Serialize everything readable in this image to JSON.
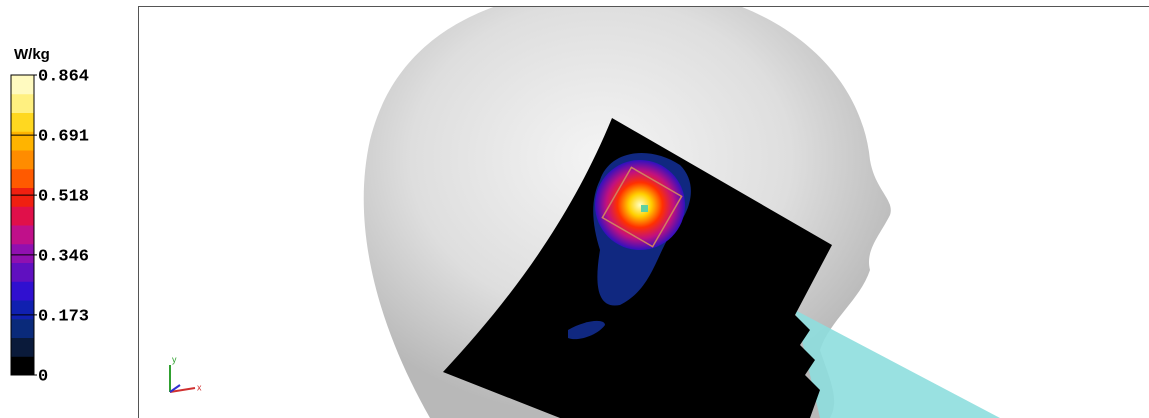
{
  "legend": {
    "unit": "W/kg",
    "lim": [
      0,
      0.864
    ],
    "ticks": [
      0,
      0.173,
      0.346,
      0.518,
      0.691,
      0.864
    ],
    "colors": [
      "#000000",
      "#0a1a3a",
      "#0a2a7a",
      "#1020b0",
      "#3010d0",
      "#6010c0",
      "#9010b0",
      "#c0108a",
      "#e0104a",
      "#f02010",
      "#ff5a00",
      "#ff8c00",
      "#ffb400",
      "#ffd820",
      "#fff080",
      "#fffac0"
    ]
  },
  "axes": {
    "y": "y",
    "x": "x"
  }
}
